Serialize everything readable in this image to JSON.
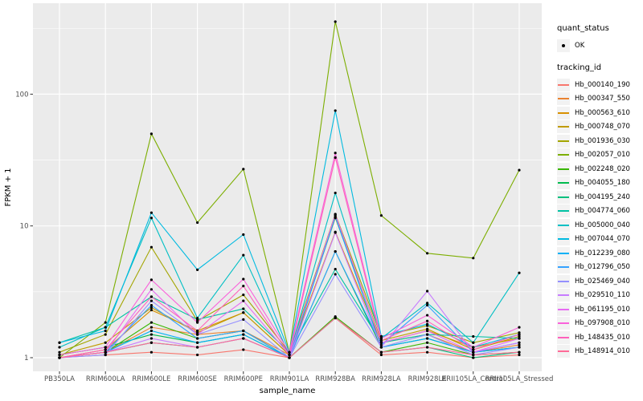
{
  "chart_data": {
    "type": "line",
    "title": "",
    "xlabel": "sample_name",
    "ylabel": "FPKM + 1",
    "y_scale": "log10",
    "y_ticks": [
      1,
      10,
      100
    ],
    "y_minor_gridlines": [
      3.162,
      31.62,
      316.2
    ],
    "ylim_approx": [
      0.93,
      490
    ],
    "grid": "white major+minor horizontal lines and major vertical lines on gray panel",
    "legend_position": "right",
    "point_marker": "small black dot on every observation (quant_status = OK)",
    "categories": [
      "PB350LA",
      "RRIM600LA",
      "RRIM600LE",
      "RRIM600SE",
      "RRIM600PE",
      "RRIM901LA",
      "RRIM928BA",
      "RRIM928LA",
      "RRIM928LE",
      "RRII105LA_Control",
      "RRII105LA_Stressed"
    ],
    "series": [
      {
        "name": "Hb_000140_190",
        "color": "#F8766D",
        "values": [
          1.0,
          1.05,
          1.1,
          1.05,
          1.15,
          1.0,
          2.0,
          1.05,
          1.1,
          1.0,
          1.05
        ]
      },
      {
        "name": "Hb_000347_550",
        "color": "#EA8331",
        "values": [
          1.0,
          1.1,
          1.7,
          1.5,
          1.6,
          1.05,
          12.0,
          1.3,
          1.5,
          1.1,
          1.25
        ]
      },
      {
        "name": "Hb_000563_610",
        "color": "#D89000",
        "values": [
          1.0,
          1.15,
          2.3,
          1.6,
          2.2,
          1.05,
          9.0,
          1.3,
          1.6,
          1.2,
          1.4
        ]
      },
      {
        "name": "Hb_000748_070",
        "color": "#C09B00",
        "values": [
          1.05,
          1.3,
          2.4,
          1.55,
          2.2,
          1.05,
          11.5,
          1.35,
          1.65,
          1.15,
          1.45
        ]
      },
      {
        "name": "Hb_001936_030",
        "color": "#A3A500",
        "values": [
          1.1,
          1.5,
          6.9,
          1.9,
          3.0,
          1.1,
          12.3,
          1.45,
          1.75,
          1.3,
          1.55
        ]
      },
      {
        "name": "Hb_002057_010",
        "color": "#7CAE00",
        "values": [
          1.0,
          1.85,
          50.0,
          10.6,
          27.0,
          1.1,
          355.0,
          12.0,
          6.2,
          5.7,
          26.5
        ]
      },
      {
        "name": "Hb_002248_020",
        "color": "#39B600",
        "values": [
          1.0,
          1.1,
          1.85,
          1.4,
          1.6,
          1.0,
          2.05,
          1.1,
          1.3,
          1.05,
          1.1
        ]
      },
      {
        "name": "Hb_004055_180",
        "color": "#00BB4E",
        "values": [
          1.05,
          1.2,
          1.5,
          1.3,
          1.5,
          1.0,
          6.4,
          1.2,
          1.4,
          1.1,
          1.2
        ]
      },
      {
        "name": "Hb_004195_240",
        "color": "#00BF7D",
        "values": [
          1.0,
          1.1,
          1.3,
          1.2,
          1.4,
          1.0,
          2.0,
          1.1,
          1.2,
          1.0,
          1.1
        ]
      },
      {
        "name": "Hb_004774_060",
        "color": "#00C1A3",
        "values": [
          1.3,
          1.7,
          2.9,
          1.95,
          2.35,
          1.1,
          4.7,
          1.3,
          1.5,
          1.45,
          1.4
        ]
      },
      {
        "name": "Hb_005000_040",
        "color": "#00BFC4",
        "values": [
          1.2,
          1.7,
          11.5,
          2.0,
          6.0,
          1.05,
          17.8,
          1.4,
          2.6,
          1.3,
          4.4
        ]
      },
      {
        "name": "Hb_007044_070",
        "color": "#00BAE0",
        "values": [
          1.3,
          1.6,
          12.6,
          4.65,
          8.6,
          1.1,
          75.0,
          1.45,
          1.8,
          1.2,
          1.5
        ]
      },
      {
        "name": "Hb_012239_080",
        "color": "#00B0F6",
        "values": [
          1.0,
          1.1,
          1.6,
          1.3,
          1.5,
          1.0,
          11.7,
          1.2,
          1.4,
          1.1,
          1.2
        ]
      },
      {
        "name": "Hb_012796_050",
        "color": "#35A2FF",
        "values": [
          1.0,
          1.1,
          2.5,
          1.4,
          1.6,
          1.0,
          6.4,
          1.25,
          2.5,
          1.1,
          1.3
        ]
      },
      {
        "name": "Hb_025469_040",
        "color": "#9590FF",
        "values": [
          1.0,
          1.05,
          2.7,
          1.5,
          1.95,
          1.0,
          4.3,
          1.2,
          1.5,
          1.05,
          1.2
        ]
      },
      {
        "name": "Hb_029510_110",
        "color": "#C77CFF",
        "values": [
          1.0,
          1.1,
          1.4,
          1.2,
          1.4,
          1.0,
          8.9,
          1.2,
          3.2,
          1.1,
          1.3
        ]
      },
      {
        "name": "Hb_061195_010",
        "color": "#E76BF3",
        "values": [
          1.0,
          1.1,
          3.3,
          1.5,
          2.7,
          1.05,
          12.2,
          1.3,
          1.6,
          1.1,
          1.4
        ]
      },
      {
        "name": "Hb_097908_010",
        "color": "#FA62DB",
        "values": [
          1.05,
          1.2,
          3.9,
          1.85,
          3.95,
          1.1,
          35.8,
          1.4,
          2.1,
          1.2,
          1.7
        ]
      },
      {
        "name": "Hb_148435_010",
        "color": "#FF62BC",
        "values": [
          1.0,
          1.15,
          2.9,
          1.6,
          3.5,
          1.05,
          33.0,
          1.35,
          1.9,
          1.15,
          1.5
        ]
      },
      {
        "name": "Hb_148914_010",
        "color": "#FF6A98",
        "values": [
          1.0,
          1.1,
          1.3,
          1.2,
          1.4,
          1.0,
          2.0,
          1.1,
          1.2,
          1.05,
          1.1
        ]
      }
    ]
  },
  "axes": {
    "x": {
      "title": "sample_name"
    },
    "y": {
      "title": "FPKM + 1",
      "tick_labels": [
        "1",
        "10",
        "100"
      ]
    }
  },
  "legend": {
    "quant_status": {
      "title": "quant_status",
      "items": [
        {
          "label": "OK",
          "marker": "black-point"
        }
      ]
    },
    "tracking_id": {
      "title": "tracking_id"
    }
  },
  "colors": {
    "figure_bg": "#FFFFFF",
    "panel_bg": "#EBEBEB",
    "grid": "#FFFFFF",
    "tick_mark": "#333333",
    "tick_text": "#4D4D4D",
    "legend_key_bg": "#F2F2F2",
    "point": "#000000"
  }
}
